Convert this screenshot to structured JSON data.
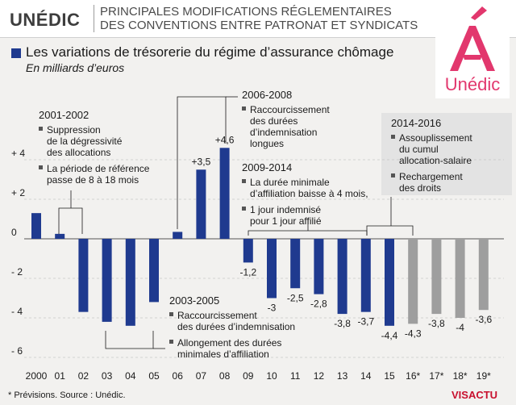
{
  "header": {
    "brand": "UNÉDIC",
    "subtitle": "PRINCIPALES MODIFICATIONS RÉGLEMENTAIRES\nDES CONVENTIONS ENTRE PATRONAT ET SYNDICATS",
    "logo_text": "Unédic",
    "logo_mark": "Á"
  },
  "colors": {
    "actual": "#1f3a8f",
    "forecast": "#9e9e9e",
    "brand": "#e2376d"
  },
  "chart_data": {
    "type": "bar",
    "title": "Les variations de trésorerie du régime d’assurance chômage",
    "subtitle": "En milliards d’euros",
    "categories": [
      "2000",
      "01",
      "02",
      "03",
      "04",
      "05",
      "06",
      "07",
      "08",
      "09",
      "10",
      "11",
      "12",
      "13",
      "14",
      "15",
      "16*",
      "17*",
      "18*",
      "19*"
    ],
    "values": [
      1.3,
      0.25,
      -3.7,
      -4.2,
      -4.4,
      -3.2,
      0.35,
      3.5,
      4.6,
      -1.2,
      -3,
      -2.5,
      -2.8,
      -3.8,
      -3.7,
      -4.4,
      -4.3,
      -3.8,
      -4,
      -3.6
    ],
    "forecast": [
      false,
      false,
      false,
      false,
      false,
      false,
      false,
      false,
      false,
      false,
      false,
      false,
      false,
      false,
      false,
      false,
      true,
      true,
      true,
      true
    ],
    "data_labels": [
      "",
      "",
      "",
      "",
      "",
      "",
      "",
      "+3,5",
      "+4,6",
      "-1,2",
      "-3",
      "-2,5",
      "-2,8",
      "-3,8",
      "-3,7",
      "-4,4",
      "-4,3",
      "-3,8",
      "-4",
      "-3,6"
    ],
    "ylim": [
      -6,
      6
    ],
    "yticks": [
      {
        "value": 4,
        "label": "+ 4"
      },
      {
        "value": 2,
        "label": "+ 2"
      },
      {
        "value": 0,
        "label": "0"
      },
      {
        "value": -2,
        "label": "- 2"
      },
      {
        "value": -4,
        "label": "- 4"
      },
      {
        "value": -6,
        "label": "- 6"
      }
    ],
    "annotations": [
      {
        "period": "2001-2002",
        "items": [
          "Suppression de la dégressivité des allocations",
          "La période de référence passe de 8 à 18 mois"
        ]
      },
      {
        "period": "2003-2005",
        "items": [
          "Raccourcissement des durées d’indemnisation",
          "Allongement des durées minimales d’affiliation"
        ]
      },
      {
        "period": "2006-2008",
        "items": [
          "Raccourcissement des durées d’indemnisation longues"
        ]
      },
      {
        "period": "2009-2014",
        "items": [
          "La durée minimale d’affiliation baisse à 4 mois,",
          "1 jour indemnisé pour 1 jour affilié"
        ]
      },
      {
        "period": "2014-2016",
        "items": [
          "Assouplissement du cumul allocation-salaire",
          "Rechargement des droits"
        ]
      }
    ]
  },
  "footer": {
    "note": "* Prévisions. Source : Unédic.",
    "credit_a": "VISACTU",
    "credit_b": "♦"
  }
}
